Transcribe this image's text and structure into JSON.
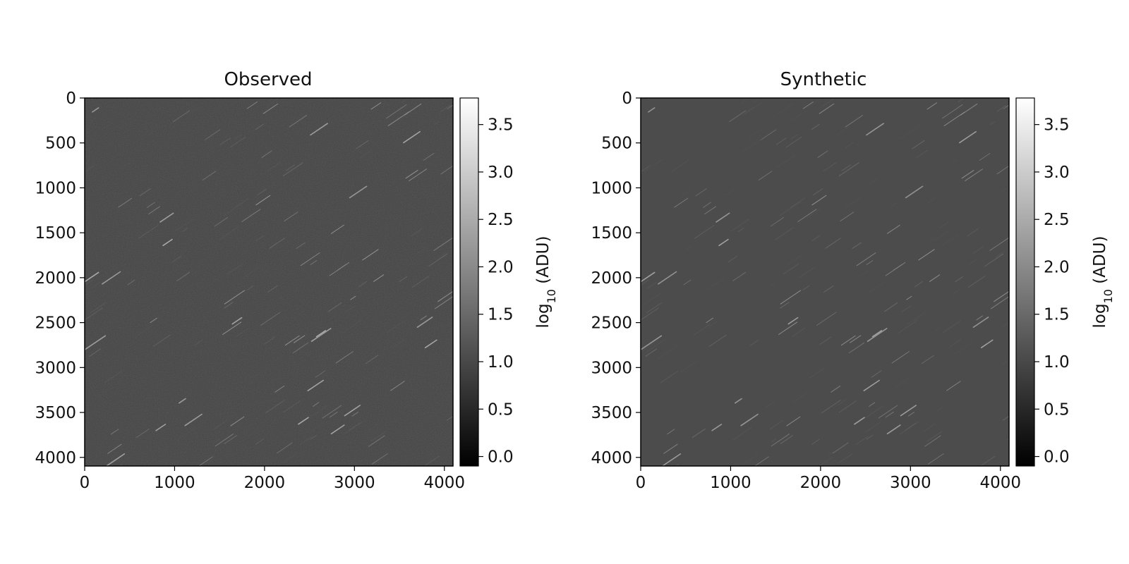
{
  "chart_data": [
    {
      "type": "heatmap",
      "title": "Observed",
      "xlabel": "",
      "ylabel": "",
      "xlim": [
        0,
        4096
      ],
      "ylim": [
        4096,
        0
      ],
      "x_ticks": [
        0,
        1000,
        2000,
        3000,
        4000
      ],
      "y_ticks": [
        0,
        500,
        1000,
        1500,
        2000,
        2500,
        3000,
        3500,
        4000
      ],
      "x_tick_labels": [
        "0",
        "1000",
        "2000",
        "3000",
        "4000"
      ],
      "y_tick_labels": [
        "0",
        "500",
        "1000",
        "1500",
        "2000",
        "2500",
        "3000",
        "3500",
        "4000"
      ],
      "colormap": "gray",
      "background_level": 0.92,
      "colorbar": {
        "label_main": "log",
        "label_sub": "10",
        "label_unit": " (ADU)",
        "range": [
          -0.1,
          3.78
        ],
        "ticks": [
          0.0,
          0.5,
          1.0,
          1.5,
          2.0,
          2.5,
          3.0,
          3.5
        ],
        "tick_labels": [
          "0.0",
          "0.5",
          "1.0",
          "1.5",
          "2.0",
          "2.5",
          "3.0",
          "3.5"
        ]
      }
    },
    {
      "type": "heatmap",
      "title": "Synthetic",
      "xlabel": "",
      "ylabel": "",
      "xlim": [
        0,
        4096
      ],
      "ylim": [
        4096,
        0
      ],
      "x_ticks": [
        0,
        1000,
        2000,
        3000,
        4000
      ],
      "y_ticks": [
        0,
        500,
        1000,
        1500,
        2000,
        2500,
        3000,
        3500,
        4000
      ],
      "x_tick_labels": [
        "0",
        "1000",
        "2000",
        "3000",
        "4000"
      ],
      "y_tick_labels": [
        "0",
        "500",
        "1000",
        "1500",
        "2000",
        "2500",
        "3000",
        "3500",
        "4000"
      ],
      "colormap": "gray",
      "background_level": 1.05,
      "colorbar": {
        "label_main": "log",
        "label_sub": "10",
        "label_unit": " (ADU)",
        "range": [
          -0.1,
          3.78
        ],
        "ticks": [
          0.0,
          0.5,
          1.0,
          1.5,
          2.0,
          2.5,
          3.0,
          3.5
        ],
        "tick_labels": [
          "0.0",
          "0.5",
          "1.0",
          "1.5",
          "2.0",
          "2.5",
          "3.0",
          "3.5"
        ]
      }
    }
  ]
}
